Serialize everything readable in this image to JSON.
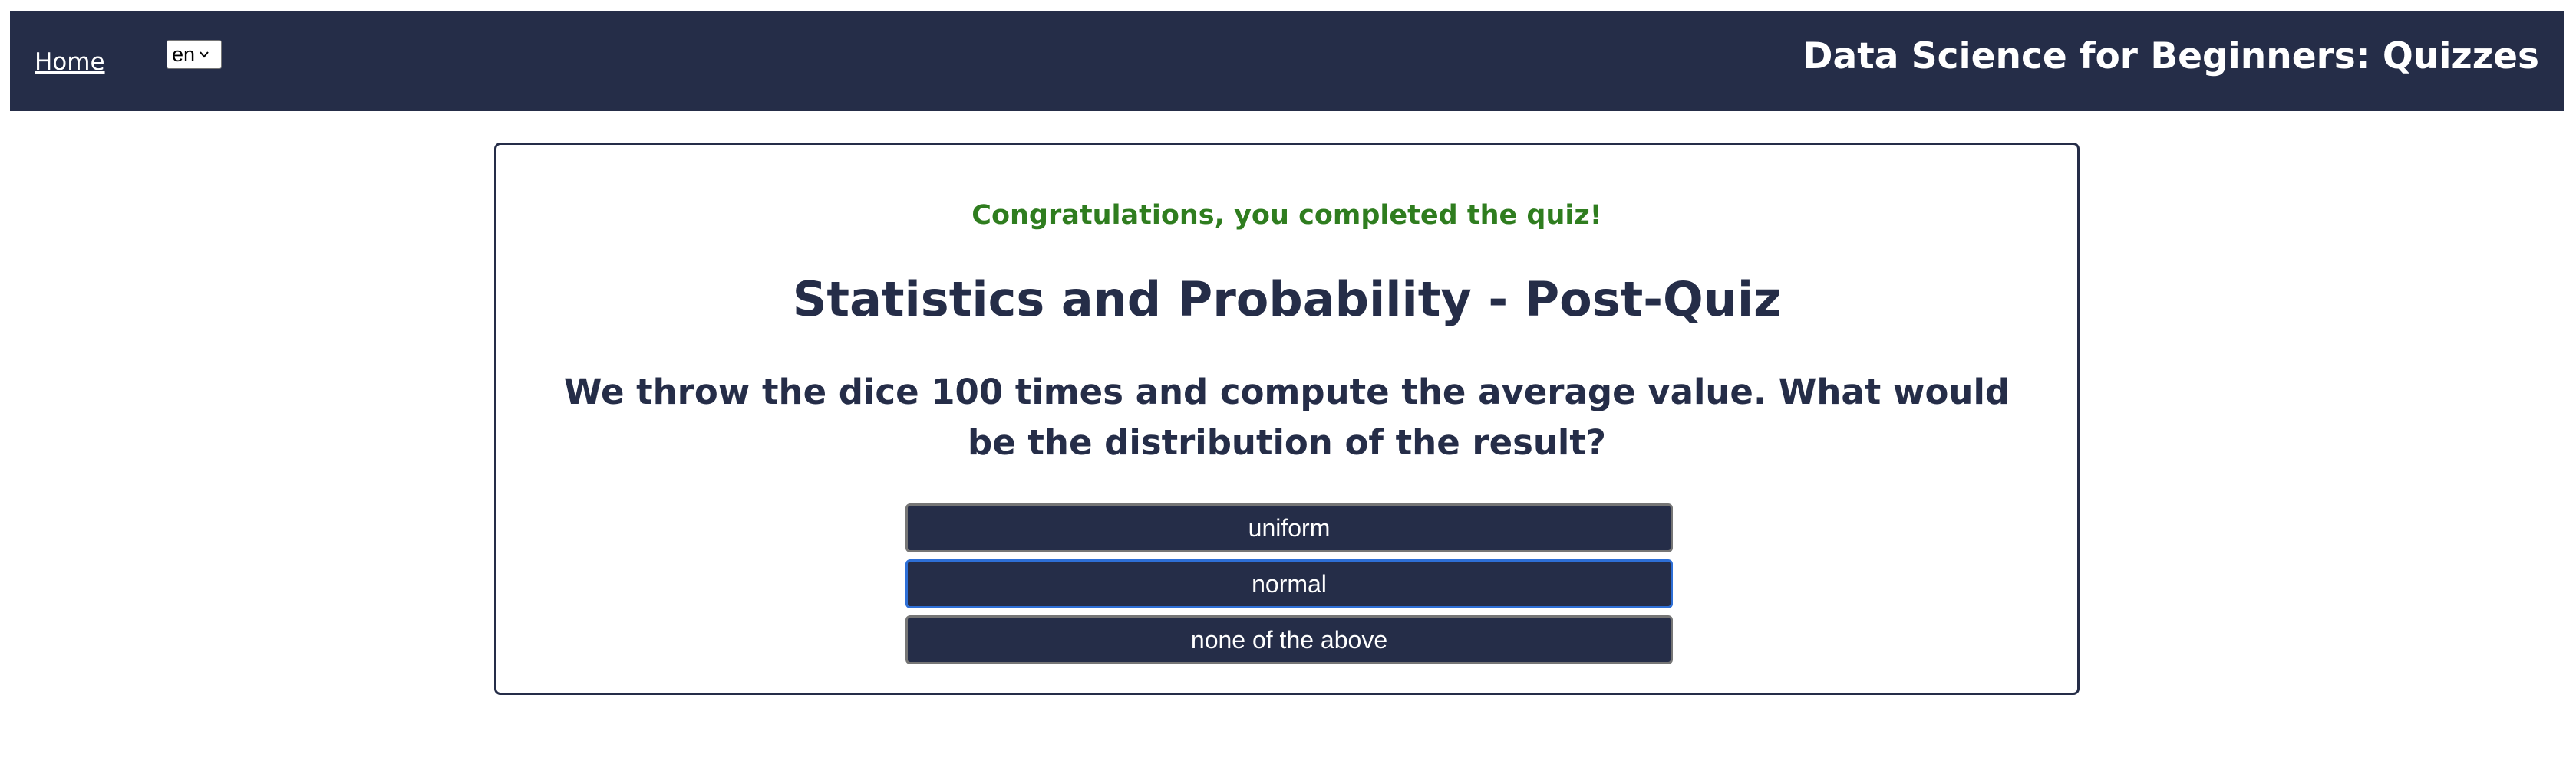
{
  "nav": {
    "home_label": "Home",
    "language_selected": "en",
    "site_title": "Data Science for Beginners: Quizzes"
  },
  "quiz": {
    "completion_message": "Congratulations, you completed the quiz!",
    "title": "Statistics and Probability - Post-Quiz",
    "question": "We throw the dice 100 times and compute the average value. What would be the distribution of the result?",
    "answers": [
      {
        "label": "uniform",
        "selected": false
      },
      {
        "label": "normal",
        "selected": true
      },
      {
        "label": "none of the above",
        "selected": false
      }
    ]
  },
  "colors": {
    "nav_background": "#252d48",
    "success_text": "#2f7d1f",
    "primary_text": "#252d48",
    "selected_outline": "#2e6fd6"
  }
}
